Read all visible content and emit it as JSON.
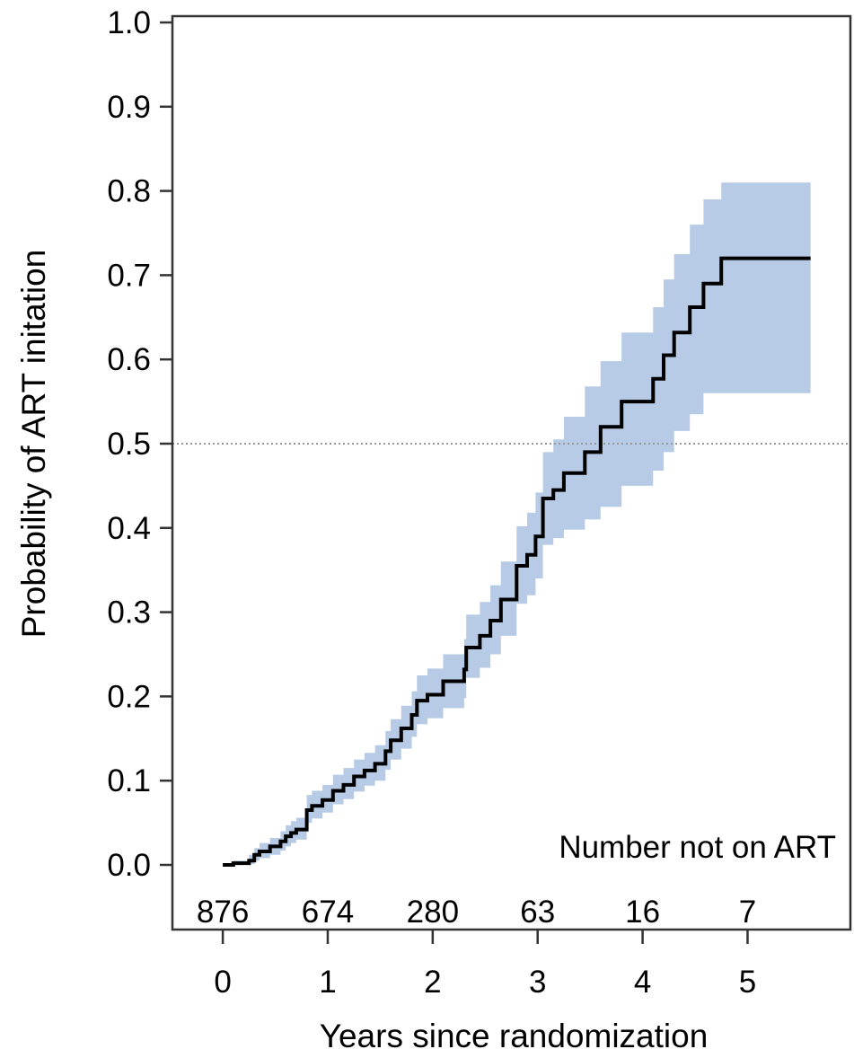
{
  "chart_data": {
    "type": "line",
    "subtype": "kaplan-meier-cumulative-incidence",
    "title": "",
    "xlabel": "Years since randomization",
    "ylabel": "Probability of ART initation",
    "xlim": [
      -0.48,
      5.98
    ],
    "ylim": [
      0.0,
      1.0
    ],
    "x_ticks": [
      0,
      1,
      2,
      3,
      4,
      5
    ],
    "x_tick_labels": [
      "0",
      "1",
      "2",
      "3",
      "4",
      "5"
    ],
    "y_ticks": [
      0.0,
      0.1,
      0.2,
      0.3,
      0.4,
      0.5,
      0.6,
      0.7,
      0.8,
      0.9,
      1.0
    ],
    "y_tick_labels": [
      "0.0",
      "0.1",
      "0.2",
      "0.3",
      "0.4",
      "0.5",
      "0.6",
      "0.7",
      "0.8",
      "0.9",
      "1.0"
    ],
    "grid": false,
    "reference_line": {
      "y": 0.5,
      "style": "dotted"
    },
    "colors": {
      "line": "#000000",
      "ci_band": "#b7cbe6",
      "reference_line": "#999999"
    },
    "series": [
      {
        "step_x": [
          0,
          0.1,
          0.25,
          0.3,
          0.35,
          0.45,
          0.55,
          0.6,
          0.65,
          0.7,
          0.8,
          0.85,
          0.95,
          1.05,
          1.15,
          1.25,
          1.35,
          1.45,
          1.55,
          1.6,
          1.7,
          1.8,
          1.85,
          1.95,
          2.1,
          2.3,
          2.32,
          2.45,
          2.55,
          2.65,
          2.8,
          2.9,
          2.98,
          3.05,
          3.15,
          3.25,
          3.45,
          3.6,
          3.8,
          4.1,
          4.2,
          4.3,
          4.45,
          4.58,
          4.75,
          5.6
        ],
        "step_y": [
          0.0,
          0.002,
          0.005,
          0.012,
          0.016,
          0.022,
          0.028,
          0.034,
          0.038,
          0.042,
          0.065,
          0.07,
          0.077,
          0.088,
          0.095,
          0.105,
          0.112,
          0.12,
          0.135,
          0.148,
          0.162,
          0.178,
          0.195,
          0.202,
          0.218,
          0.232,
          0.258,
          0.272,
          0.29,
          0.315,
          0.355,
          0.368,
          0.39,
          0.435,
          0.445,
          0.465,
          0.49,
          0.52,
          0.55,
          0.577,
          0.605,
          0.632,
          0.662,
          0.69,
          0.72,
          0.72
        ],
        "ci_lower": [
          0.0,
          0.0,
          0.001,
          0.005,
          0.008,
          0.012,
          0.017,
          0.022,
          0.026,
          0.03,
          0.05,
          0.055,
          0.062,
          0.072,
          0.078,
          0.087,
          0.094,
          0.1,
          0.113,
          0.125,
          0.138,
          0.152,
          0.167,
          0.174,
          0.186,
          0.198,
          0.222,
          0.234,
          0.25,
          0.272,
          0.31,
          0.32,
          0.34,
          0.38,
          0.388,
          0.398,
          0.41,
          0.425,
          0.45,
          0.468,
          0.49,
          0.515,
          0.535,
          0.56,
          0.56,
          0.56
        ],
        "ci_upper": [
          0.0,
          0.005,
          0.012,
          0.02,
          0.026,
          0.032,
          0.04,
          0.047,
          0.052,
          0.056,
          0.083,
          0.088,
          0.095,
          0.107,
          0.115,
          0.125,
          0.133,
          0.142,
          0.159,
          0.173,
          0.189,
          0.206,
          0.225,
          0.233,
          0.25,
          0.268,
          0.297,
          0.312,
          0.332,
          0.36,
          0.402,
          0.418,
          0.442,
          0.49,
          0.505,
          0.532,
          0.568,
          0.598,
          0.632,
          0.662,
          0.695,
          0.725,
          0.76,
          0.79,
          0.81,
          0.81
        ]
      }
    ],
    "risk_table": {
      "title": "Number not on ART",
      "x": [
        0,
        1,
        2,
        3,
        4,
        5
      ],
      "counts": [
        "876",
        "674",
        "280",
        "63",
        "16",
        "7"
      ]
    }
  }
}
